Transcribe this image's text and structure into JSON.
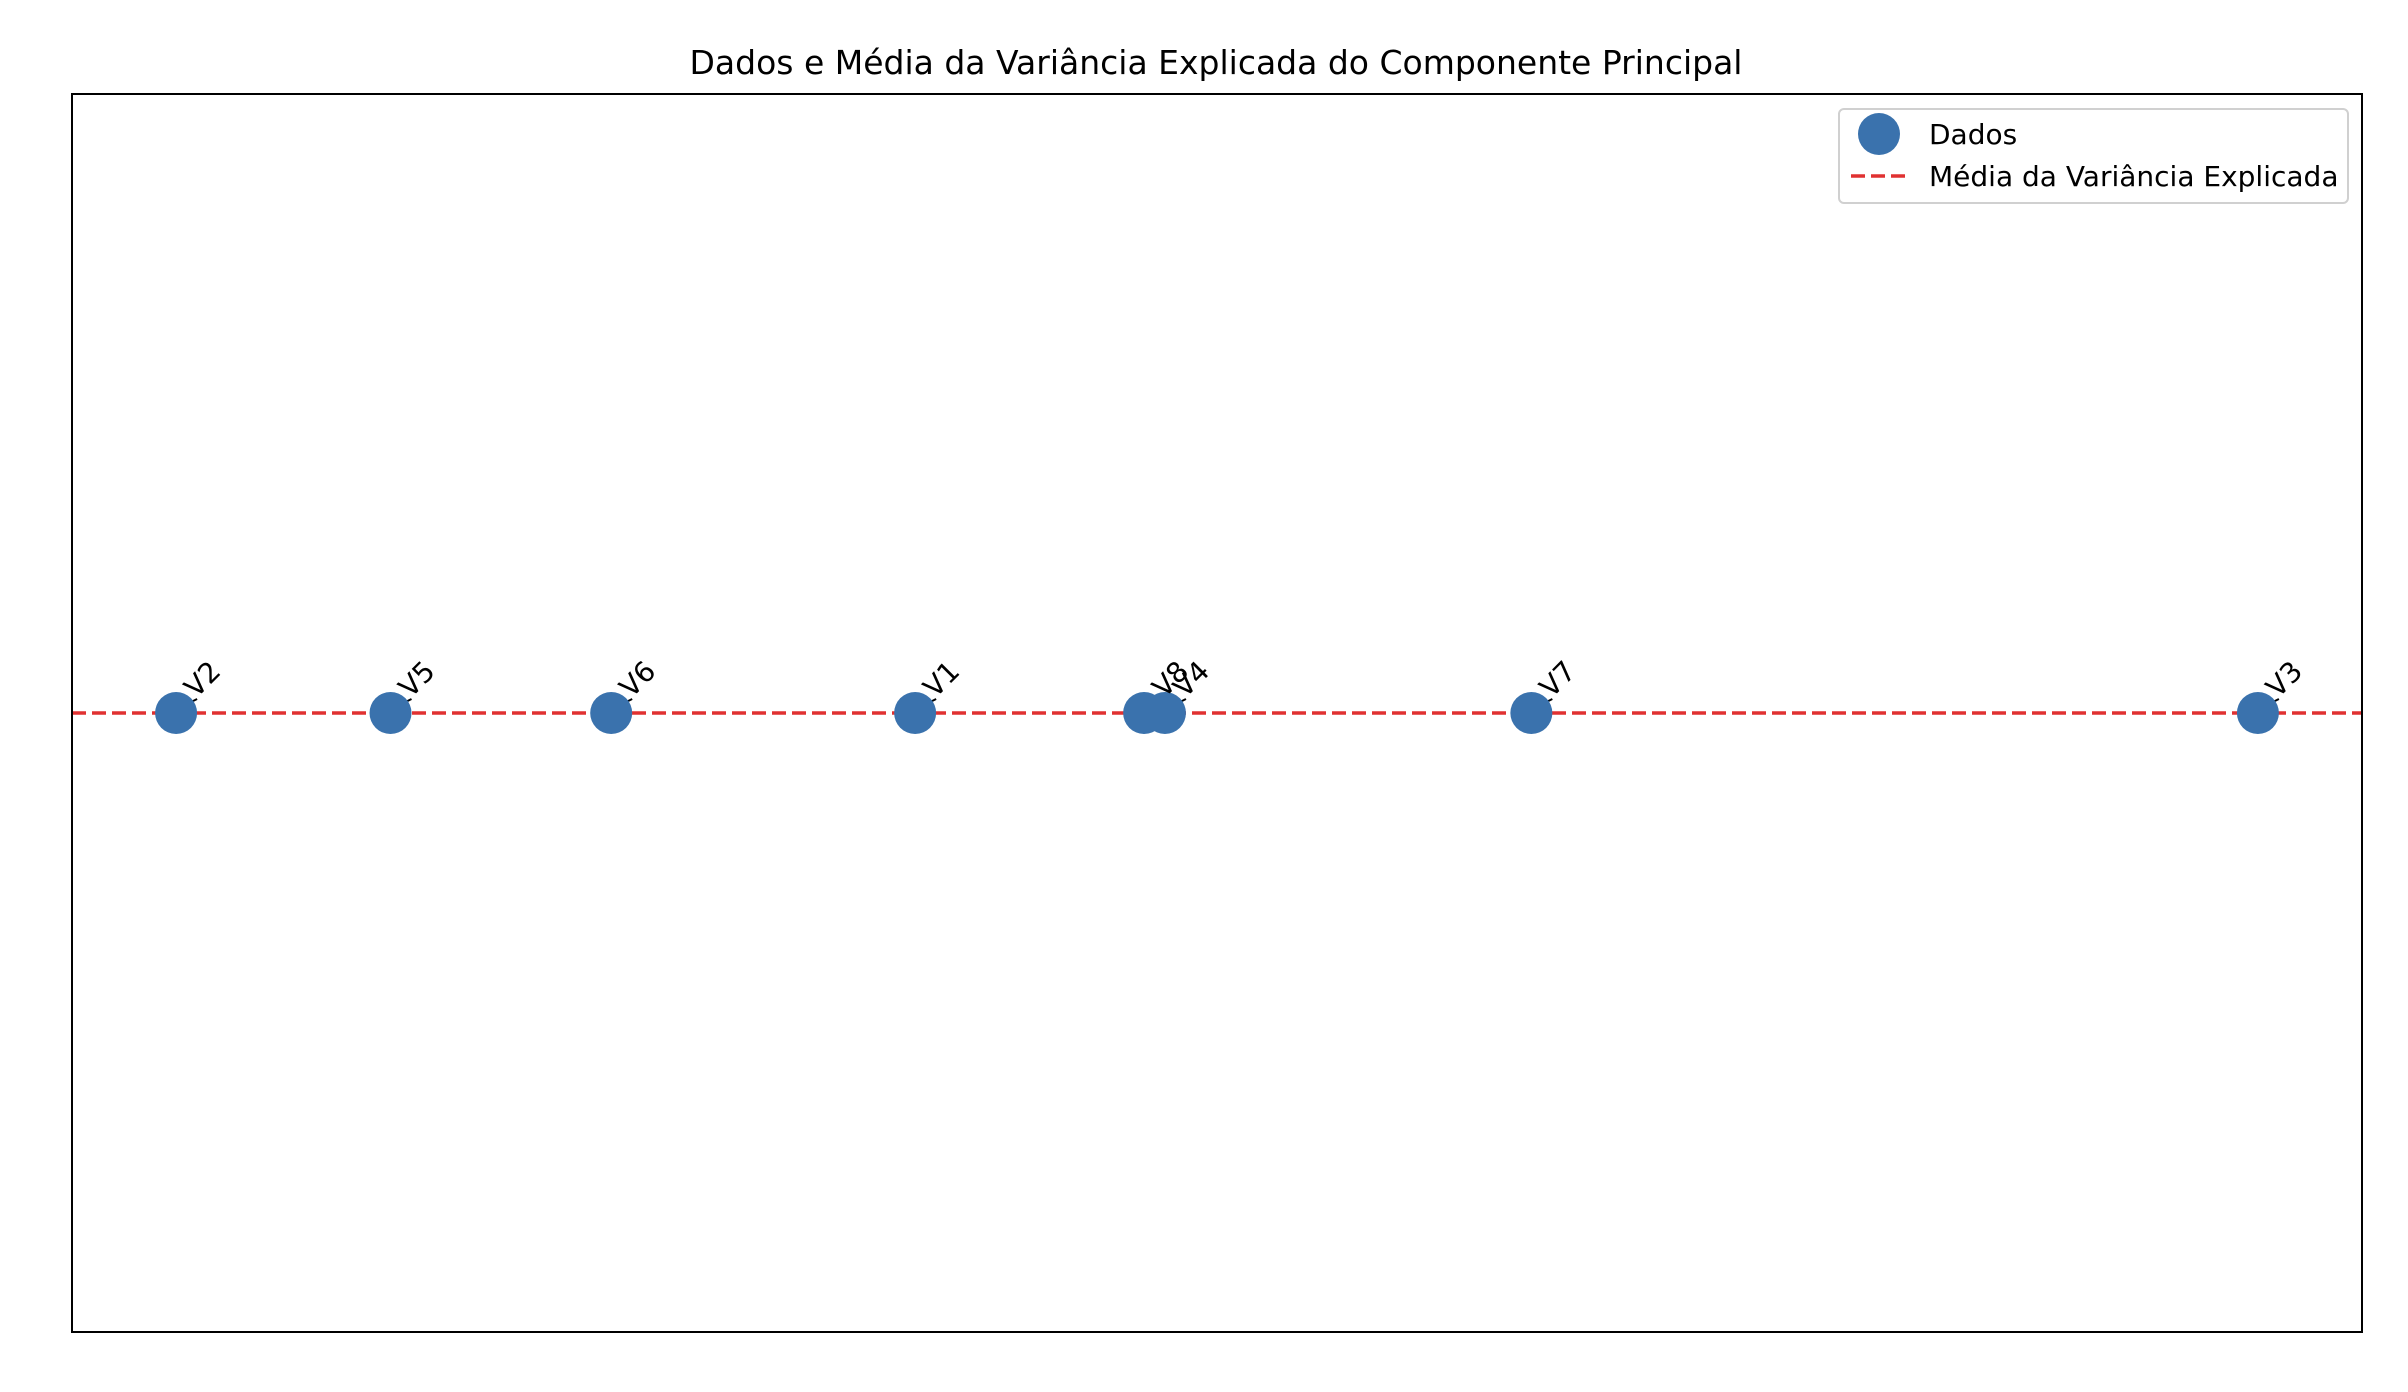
{
  "chart_data": {
    "type": "scatter",
    "title": "Dados e Média da Variância Explicada do Componente Principal",
    "xlabel": "",
    "ylabel": "",
    "xlim": [
      -0.5,
      10.5
    ],
    "ylim": [
      -1,
      1
    ],
    "grid": false,
    "axes_ticks_visible": false,
    "legend_position": "top-right",
    "legend": [
      {
        "label": "Dados",
        "kind": "marker"
      },
      {
        "label": "Média da Variância Explicada",
        "kind": "dashed-line"
      }
    ],
    "series": [
      {
        "name": "Dados",
        "color": "#3a72ad",
        "points": [
          {
            "label": "V2",
            "x": 0.0,
            "y": 0.0
          },
          {
            "label": "V5",
            "x": 1.03,
            "y": 0.0
          },
          {
            "label": "V6",
            "x": 2.09,
            "y": 0.0
          },
          {
            "label": "V1",
            "x": 3.55,
            "y": 0.0
          },
          {
            "label": "V8",
            "x": 4.65,
            "y": 0.0
          },
          {
            "label": "V4",
            "x": 4.75,
            "y": 0.0
          },
          {
            "label": "V7",
            "x": 6.51,
            "y": 0.0
          },
          {
            "label": "V3",
            "x": 10.0,
            "y": 0.0
          }
        ]
      }
    ],
    "reference_line": {
      "name": "Média da Variância Explicada",
      "orientation": "horizontal",
      "y": 0.0,
      "color": "#e03131",
      "style": "dashed"
    }
  }
}
